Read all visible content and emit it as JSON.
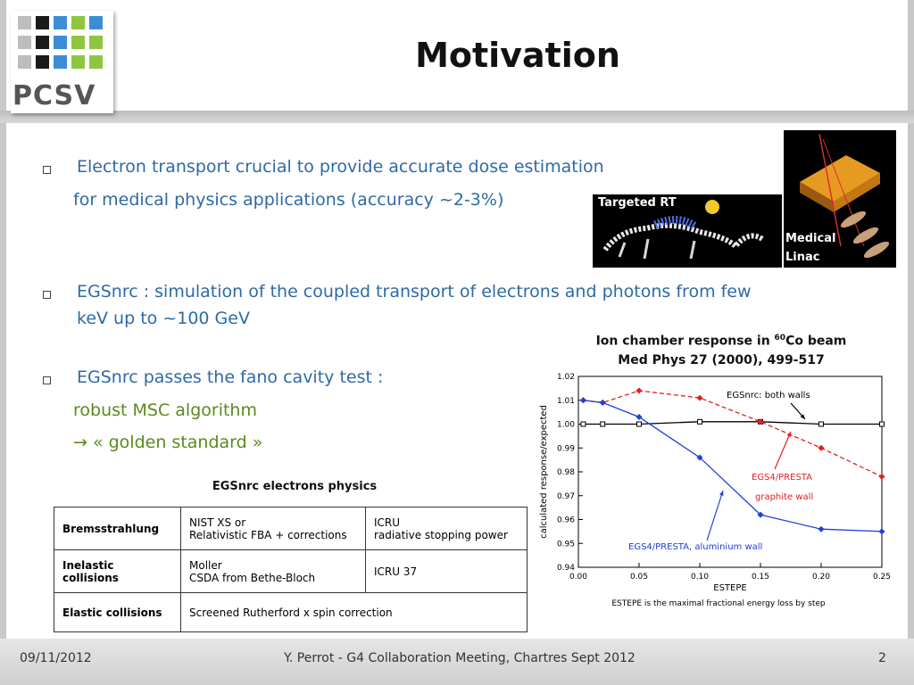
{
  "logo": {
    "text": "PCSV"
  },
  "title": "Motivation",
  "bullets": {
    "b1_line1": "Electron transport crucial to provide accurate dose estimation",
    "b1_line2": "for medical physics applications (accuracy ~2-3%)",
    "b2_line1": "EGSnrc : simulation of the coupled transport of electrons and photons from few",
    "b2_line2": "keV up to ~100 GeV",
    "b3_line1": "EGSnrc passes the fano cavity test :",
    "b3_line2": "robust MSC algorithm",
    "b3_line3": "→ « golden standard »"
  },
  "images": {
    "targeted_rt": "Targeted RT",
    "medical": "Medical",
    "linac": "Linac"
  },
  "table": {
    "caption": "EGSnrc electrons physics",
    "rows": [
      {
        "name": "Bremsstrahlung",
        "col2a": "NIST XS or",
        "col2b": "Relativistic FBA + corrections",
        "col3a": "ICRU",
        "col3b": "radiative stopping power"
      },
      {
        "name": "Inelastic collisions",
        "col2a": "Moller",
        "col2b": "CSDA from Bethe-Bloch",
        "col3a": "ICRU 37"
      },
      {
        "name": "Elastic collisions",
        "col2": "Screened Rutherford x spin correction"
      }
    ]
  },
  "chart_caption": {
    "line1_pre": "Ion chamber response in ",
    "line1_sup": "60",
    "line1_post": "Co beam",
    "line2": "Med Phys 27 (2000), 499-517",
    "note": "ESTEPE is the maximal fractional energy loss by step"
  },
  "chart_data": {
    "type": "line",
    "xlabel": "ESTEPE",
    "ylabel": "calculated response/expected",
    "xlim": [
      0.0,
      0.25
    ],
    "ylim": [
      0.94,
      1.02
    ],
    "xticks": [
      "0.00",
      "0.05",
      "0.10",
      "0.15",
      "0.20",
      "0.25"
    ],
    "yticks": [
      "0.94",
      "0.95",
      "0.96",
      "0.97",
      "0.98",
      "0.99",
      "1.00",
      "1.01",
      "1.02"
    ],
    "series": [
      {
        "name": "EGSnrc: both walls",
        "color": "#000000",
        "x": [
          0.004,
          0.02,
          0.05,
          0.1,
          0.15,
          0.2,
          0.25
        ],
        "y": [
          1.0,
          1.0,
          1.0,
          1.001,
          1.001,
          1.0,
          1.0
        ]
      },
      {
        "name": "EGS4/PRESTA graphite wall",
        "color": "#e02020",
        "x": [
          0.004,
          0.02,
          0.05,
          0.1,
          0.15,
          0.2,
          0.25
        ],
        "y": [
          1.01,
          1.009,
          1.014,
          1.011,
          1.001,
          0.99,
          0.978
        ]
      },
      {
        "name": "EGS4/PRESTA, aluminium wall",
        "color": "#1f3fd8",
        "x": [
          0.004,
          0.02,
          0.05,
          0.1,
          0.15,
          0.2,
          0.25
        ],
        "y": [
          1.01,
          1.009,
          1.003,
          0.986,
          0.962,
          0.956,
          0.955
        ]
      }
    ],
    "annotations": {
      "a1": "EGSnrc: both walls",
      "a2": "EGS4/PRESTA",
      "a3": "graphite wall",
      "a4": "EGS4/PRESTA, aluminium wall"
    }
  },
  "footer": {
    "date": "09/11/2012",
    "center": "Y. Perrot - G4 Collaboration Meeting, Chartres Sept 2012",
    "page": "2"
  }
}
